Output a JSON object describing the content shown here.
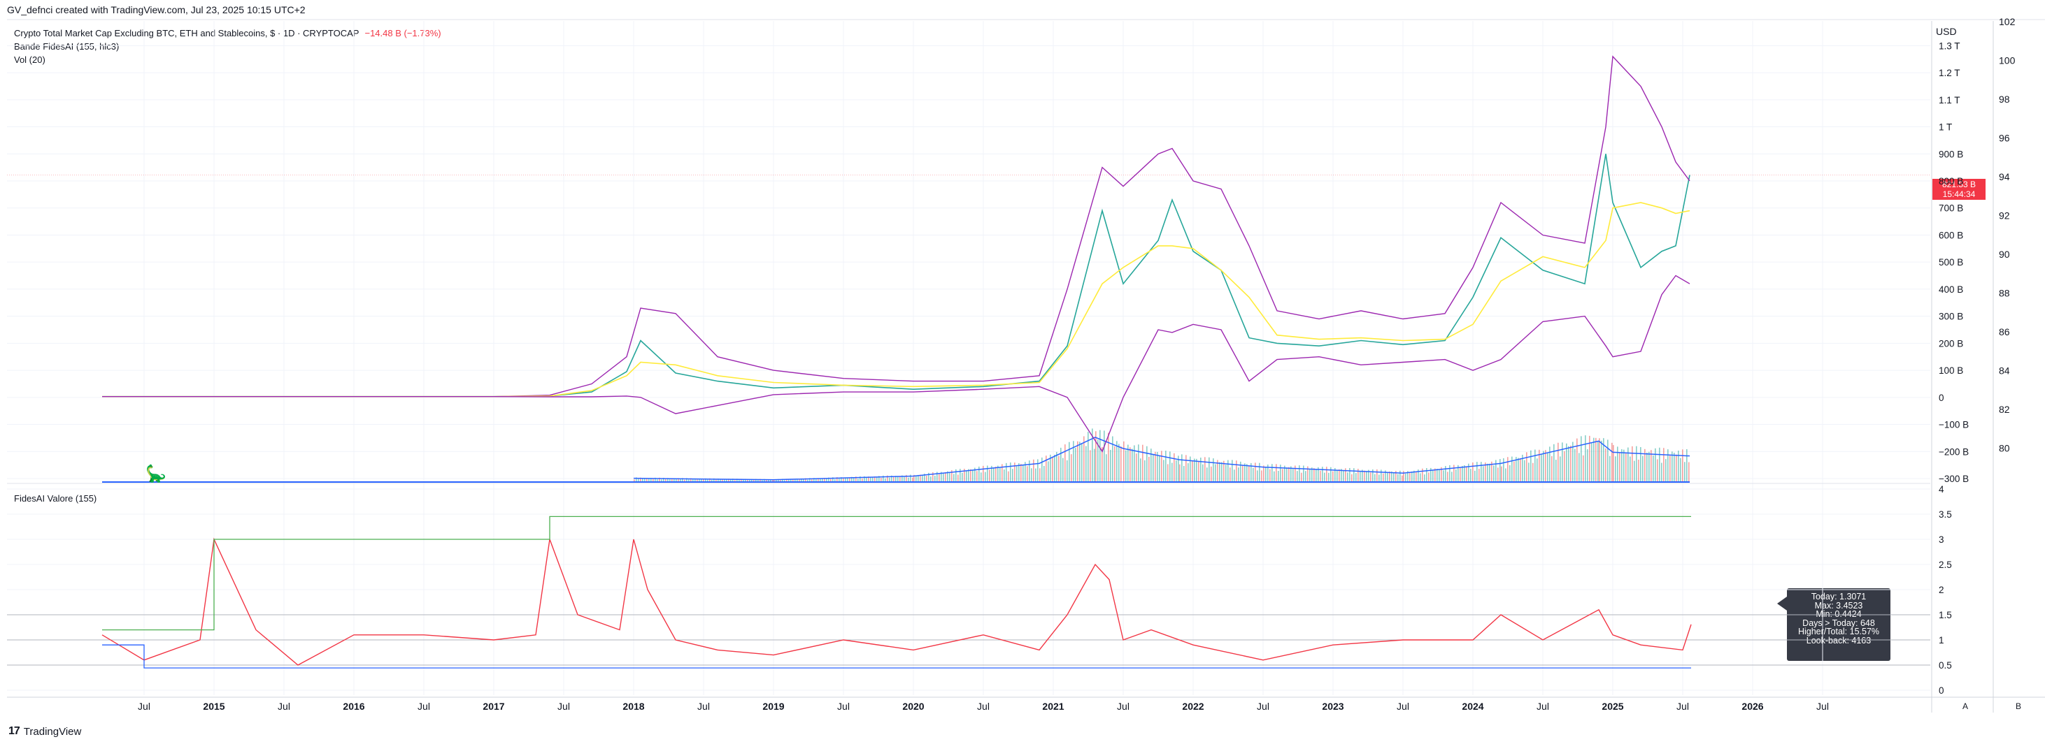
{
  "header": {
    "created_by": "GV_defnci created with TradingView.com, Jul 23, 2025 10:15 UTC+2"
  },
  "legend": {
    "main_series": "Crypto Total Market Cap Excluding BTC, ETH and Stablecoins, $ · 1D · CRYPTOCAP",
    "main_change": "−14.48 B (−1.73%)",
    "indicator_1": "Bande FidesAI (155, hlc3)",
    "indicator_2": "Vol (20)"
  },
  "price_scale": {
    "currency": "USD",
    "last_price": "821.53 B",
    "countdown": "15:44:34"
  },
  "colors": {
    "price_line": "#26a69a",
    "price_line_down": "#ef5350",
    "band": "#9c27b0",
    "band_mid": "#ffeb3b",
    "vol_ma": "#2962ff",
    "oscillator": "#f23645",
    "osc_max": "#4caf50",
    "osc_min": "#2962ff",
    "grid": "#f0f3fa"
  },
  "oscillator": {
    "title": "FidesAI Valore (155)",
    "tooltip": {
      "today": "Today: 1.3071",
      "max": "Max: 3.4523",
      "min": "Min: 0.4424",
      "days": "Days > Today: 648",
      "ratio": "Higher/Total: 15.57%",
      "lookback": "Look-back: 4163"
    }
  },
  "scale_buttons": {
    "a": "A",
    "b": "B"
  },
  "brand": {
    "logo": "17",
    "name": "TradingView"
  },
  "chart_data": [
    {
      "type": "line",
      "name": "Crypto Total Market Cap Excluding BTC, ETH and Stablecoins",
      "x_ticks": [
        "Jul",
        "2015",
        "Jul",
        "2016",
        "Jul",
        "2017",
        "Jul",
        "2018",
        "Jul",
        "2019",
        "Jul",
        "2020",
        "Jul",
        "2021",
        "Jul",
        "2022",
        "Jul",
        "2023",
        "Jul",
        "2024",
        "Jul",
        "2025",
        "Jul",
        "2026",
        "Jul"
      ],
      "y_ticks": [
        "1.3 T",
        "1.2 T",
        "1.1 T",
        "1 T",
        "900 B",
        "800 B",
        "700 B",
        "600 B",
        "500 B",
        "400 B",
        "300 B",
        "200 B",
        "100 B",
        "0",
        "−100 B",
        "−200 B",
        "−300 B"
      ],
      "y_ticks_secondary": [
        "102",
        "100",
        "98",
        "96",
        "94",
        "92",
        "90",
        "88",
        "86",
        "84",
        "82",
        "80"
      ],
      "ylim": [
        -300,
        1350
      ],
      "y_unit": "B USD",
      "x": [
        2014.2,
        2015.0,
        2016.0,
        2017.0,
        2017.4,
        2017.7,
        2017.95,
        2018.05,
        2018.3,
        2018.6,
        2019.0,
        2019.5,
        2020.0,
        2020.5,
        2020.9,
        2021.1,
        2021.35,
        2021.5,
        2021.75,
        2021.85,
        2022.0,
        2022.2,
        2022.4,
        2022.6,
        2022.9,
        2023.2,
        2023.5,
        2023.8,
        2024.0,
        2024.2,
        2024.5,
        2024.8,
        2024.95,
        2025.0,
        2025.2,
        2025.35,
        2025.45,
        2025.55
      ],
      "series": [
        {
          "name": "price",
          "values": [
            3,
            3,
            3,
            3,
            5,
            20,
            95,
            210,
            90,
            60,
            35,
            45,
            30,
            40,
            60,
            190,
            690,
            420,
            580,
            730,
            540,
            470,
            220,
            200,
            190,
            210,
            195,
            210,
            370,
            590,
            470,
            420,
            900,
            720,
            480,
            540,
            560,
            822
          ]
        },
        {
          "name": "band_upper",
          "values": [
            3,
            3,
            3,
            3,
            8,
            50,
            150,
            330,
            310,
            150,
            100,
            70,
            60,
            60,
            80,
            400,
            850,
            780,
            900,
            920,
            800,
            770,
            560,
            320,
            290,
            320,
            290,
            310,
            480,
            720,
            600,
            570,
            1000,
            1260,
            1150,
            1000,
            870,
            800
          ]
        },
        {
          "name": "band_mid",
          "values": [
            3,
            3,
            3,
            3,
            5,
            25,
            80,
            130,
            120,
            80,
            55,
            45,
            40,
            45,
            55,
            180,
            420,
            480,
            560,
            560,
            550,
            470,
            370,
            230,
            215,
            220,
            210,
            215,
            270,
            430,
            520,
            480,
            580,
            700,
            720,
            700,
            680,
            690
          ]
        },
        {
          "name": "band_lower",
          "values": [
            3,
            3,
            3,
            3,
            2,
            2,
            5,
            0,
            -60,
            -30,
            10,
            20,
            20,
            30,
            40,
            0,
            -200,
            0,
            250,
            240,
            270,
            250,
            60,
            140,
            150,
            120,
            130,
            140,
            100,
            140,
            280,
            300,
            190,
            150,
            170,
            380,
            450,
            420
          ]
        }
      ]
    },
    {
      "type": "bar",
      "name": "Vol (20)",
      "note": "volume histogram at bottom of main pane, relative heights",
      "x": [
        2018.0,
        2019.0,
        2020.0,
        2020.9,
        2021.3,
        2021.5,
        2021.9,
        2022.5,
        2023.5,
        2024.2,
        2024.9,
        2025.0,
        2025.55
      ],
      "values": [
        5,
        3,
        8,
        25,
        60,
        45,
        30,
        20,
        12,
        25,
        55,
        40,
        35
      ]
    },
    {
      "type": "line",
      "name": "FidesAI Valore (155)",
      "y_ticks": [
        "4",
        "3.5",
        "3",
        "2.5",
        "2",
        "1.5",
        "1",
        "0.5",
        "0"
      ],
      "ylim": [
        0,
        4
      ],
      "x": [
        2014.2,
        2014.5,
        2014.9,
        2015.0,
        2015.3,
        2015.6,
        2016.0,
        2016.5,
        2017.0,
        2017.3,
        2017.4,
        2017.6,
        2017.9,
        2018.0,
        2018.1,
        2018.3,
        2018.6,
        2019.0,
        2019.5,
        2020.0,
        2020.5,
        2020.9,
        2021.1,
        2021.3,
        2021.4,
        2021.5,
        2021.7,
        2022.0,
        2022.5,
        2023.0,
        2023.5,
        2024.0,
        2024.2,
        2024.5,
        2024.9,
        2025.0,
        2025.2,
        2025.5,
        2025.56
      ],
      "series": [
        {
          "name": "valore",
          "values": [
            1.1,
            0.6,
            1.0,
            3.0,
            1.2,
            0.5,
            1.1,
            1.1,
            1.0,
            1.1,
            3.0,
            1.5,
            1.2,
            3.0,
            2.0,
            1.0,
            0.8,
            0.7,
            1.0,
            0.8,
            1.1,
            0.8,
            1.5,
            2.5,
            2.2,
            1.0,
            1.2,
            0.9,
            0.6,
            0.9,
            1.0,
            1.0,
            1.5,
            1.0,
            1.6,
            1.1,
            0.9,
            0.8,
            1.3071
          ]
        },
        {
          "name": "running_max",
          "values": [
            1.2,
            1.2,
            1.2,
            3.0,
            3.0,
            3.0,
            3.0,
            3.0,
            3.0,
            3.0,
            3.4523,
            3.4523,
            3.4523,
            3.4523,
            3.4523,
            3.4523,
            3.4523,
            3.4523,
            3.4523,
            3.4523,
            3.4523,
            3.4523,
            3.4523,
            3.4523,
            3.4523,
            3.4523,
            3.4523,
            3.4523,
            3.4523,
            3.4523,
            3.4523,
            3.4523,
            3.4523,
            3.4523,
            3.4523,
            3.4523,
            3.4523,
            3.4523,
            3.4523
          ]
        },
        {
          "name": "running_min",
          "values": [
            0.9,
            0.4424,
            0.4424,
            0.4424,
            0.4424,
            0.4424,
            0.4424,
            0.4424,
            0.4424,
            0.4424,
            0.4424,
            0.4424,
            0.4424,
            0.4424,
            0.4424,
            0.4424,
            0.4424,
            0.4424,
            0.4424,
            0.4424,
            0.4424,
            0.4424,
            0.4424,
            0.4424,
            0.4424,
            0.4424,
            0.4424,
            0.4424,
            0.4424,
            0.4424,
            0.4424,
            0.4424,
            0.4424,
            0.4424,
            0.4424,
            0.4424,
            0.4424,
            0.4424,
            0.4424
          ]
        }
      ],
      "horizontal_lines": [
        1.5,
        1.0,
        0.5
      ]
    }
  ]
}
